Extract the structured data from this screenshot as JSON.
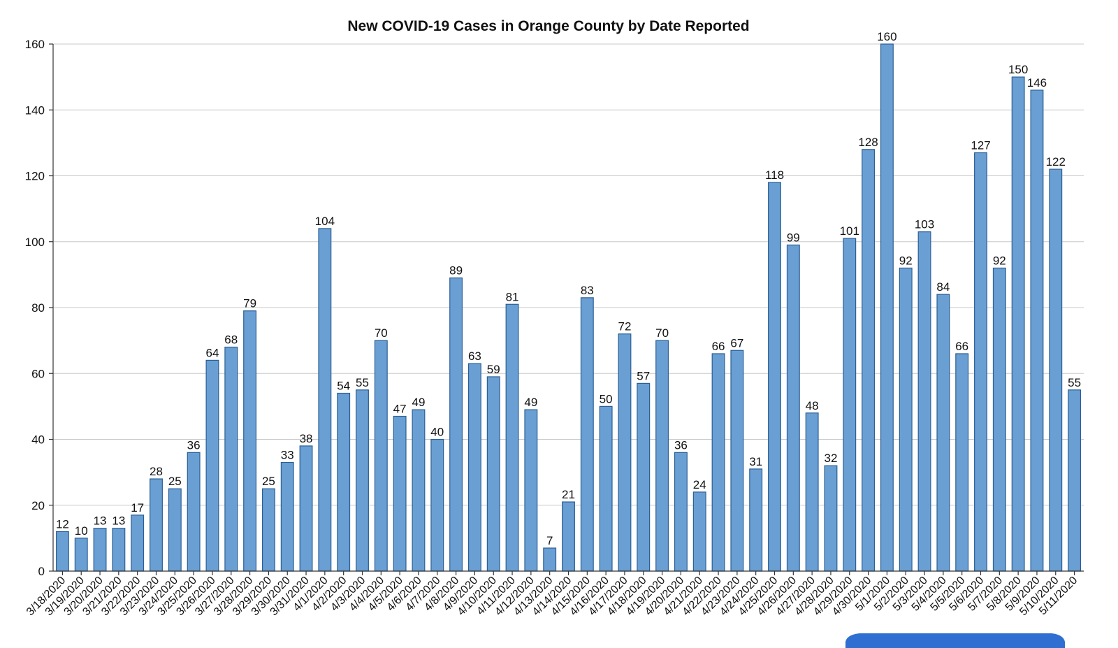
{
  "chart_data": {
    "type": "bar",
    "title": "New COVID-19 Cases in Orange County by Date Reported",
    "xlabel": "",
    "ylabel": "",
    "ylim": [
      0,
      160
    ],
    "yticks": [
      0,
      20,
      40,
      60,
      80,
      100,
      120,
      140,
      160
    ],
    "grid": true,
    "categories": [
      "3/18/2020",
      "3/19/2020",
      "3/20/2020",
      "3/21/2020",
      "3/22/2020",
      "3/23/2020",
      "3/24/2020",
      "3/25/2020",
      "3/26/2020",
      "3/27/2020",
      "3/28/2020",
      "3/29/2020",
      "3/30/2020",
      "3/31/2020",
      "4/1/2020",
      "4/2/2020",
      "4/3/2020",
      "4/4/2020",
      "4/5/2020",
      "4/6/2020",
      "4/7/2020",
      "4/8/2020",
      "4/9/2020",
      "4/10/2020",
      "4/11/2020",
      "4/12/2020",
      "4/13/2020",
      "4/14/2020",
      "4/15/2020",
      "4/16/2020",
      "4/17/2020",
      "4/18/2020",
      "4/19/2020",
      "4/20/2020",
      "4/21/2020",
      "4/22/2020",
      "4/23/2020",
      "4/24/2020",
      "4/25/2020",
      "4/26/2020",
      "4/27/2020",
      "4/28/2020",
      "4/29/2020",
      "4/30/2020",
      "5/1/2020",
      "5/2/2020",
      "5/3/2020",
      "5/4/2020",
      "5/5/2020",
      "5/6/2020",
      "5/7/2020",
      "5/8/2020",
      "5/9/2020",
      "5/10/2020",
      "5/11/2020"
    ],
    "values": [
      12,
      10,
      13,
      13,
      17,
      28,
      25,
      36,
      64,
      68,
      79,
      25,
      33,
      38,
      104,
      54,
      55,
      70,
      47,
      49,
      40,
      89,
      63,
      59,
      81,
      49,
      7,
      21,
      83,
      50,
      72,
      57,
      70,
      36,
      24,
      66,
      67,
      31,
      118,
      99,
      48,
      32,
      101,
      128,
      160,
      92,
      103,
      84,
      66,
      127,
      92,
      150,
      146,
      122,
      55
    ],
    "colors": {
      "bar_fill": "#6a9fd4",
      "bar_stroke": "#2b5f95",
      "grid": "#c8c8c8"
    }
  }
}
